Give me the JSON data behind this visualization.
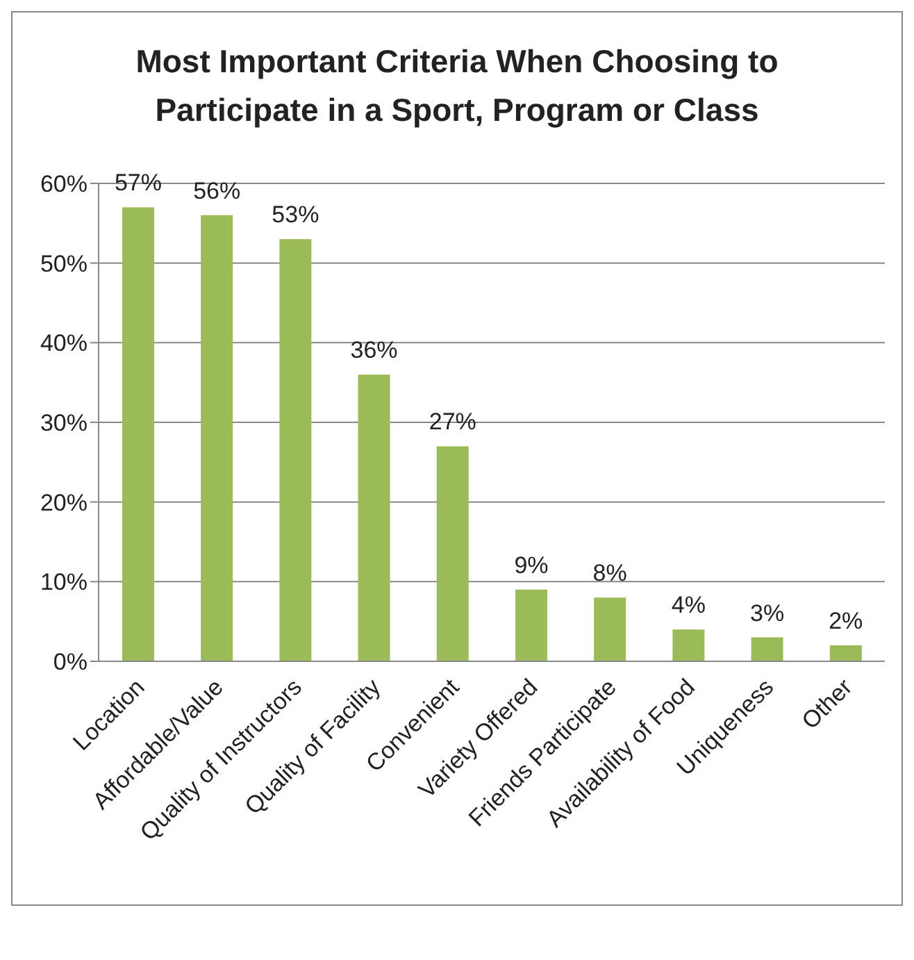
{
  "chart_data": {
    "type": "bar",
    "title": "Most Important Criteria When Choosing to Participate in a Sport, Program or Class",
    "categories": [
      "Location",
      "Affordable/Value",
      "Quality of Instructors",
      "Quality of Facility",
      "Convenient",
      "Variety Offered",
      "Friends Participate",
      "Availability of Food",
      "Uniqueness",
      "Other"
    ],
    "values": [
      57,
      56,
      53,
      36,
      27,
      9,
      8,
      4,
      3,
      2
    ],
    "value_labels": [
      "57%",
      "56%",
      "53%",
      "36%",
      "27%",
      "9%",
      "8%",
      "4%",
      "3%",
      "2%"
    ],
    "color": "#9bbb59",
    "ylim": [
      0,
      60
    ],
    "yticks": [
      {
        "value": 0,
        "label": "0%"
      },
      {
        "value": 10,
        "label": "10%"
      },
      {
        "value": 20,
        "label": "20%"
      },
      {
        "value": 30,
        "label": "30%"
      },
      {
        "value": 40,
        "label": "40%"
      },
      {
        "value": 50,
        "label": "50%"
      },
      {
        "value": 60,
        "label": "60%"
      }
    ],
    "grid": "y",
    "legend": false
  }
}
